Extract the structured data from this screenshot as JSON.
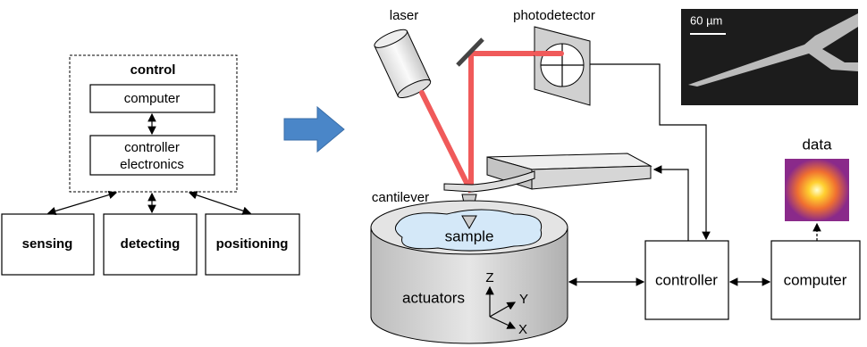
{
  "control_block": {
    "title": "control",
    "computer": "computer",
    "electronics": [
      "controller",
      "electronics"
    ]
  },
  "functions": [
    "sensing",
    "detecting",
    "positioning"
  ],
  "afm": {
    "laser": "laser",
    "photodetector": "photodetector",
    "scale_bar": "60 µm",
    "cantilever": "cantilever",
    "sample": "sample",
    "actuators": "actuators",
    "axes": [
      "Z",
      "Y",
      "X"
    ],
    "controller": "controller",
    "computer": "computer",
    "data": "data"
  }
}
